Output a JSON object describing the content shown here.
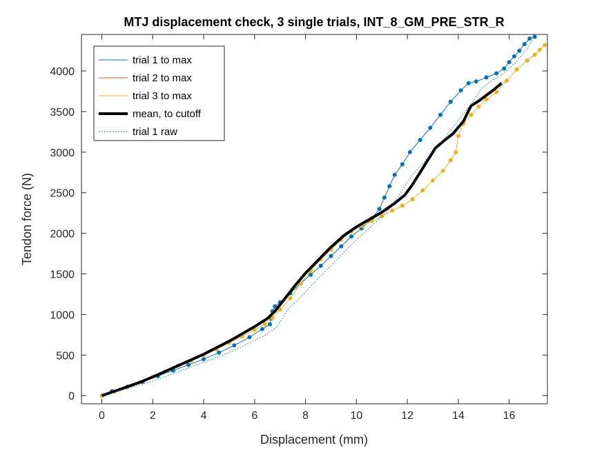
{
  "chart_data": {
    "type": "line",
    "title": "MTJ displacement check, 3 single trials, INT_8_GM_PRE_STR_R",
    "xlabel": "Displacement (mm)",
    "ylabel": "Tendon force (N)",
    "xlim": [
      -0.8,
      17.5
    ],
    "ylim": [
      -100,
      4450
    ],
    "xticks": [
      0,
      2,
      4,
      6,
      8,
      10,
      12,
      14,
      16
    ],
    "yticks": [
      0,
      500,
      1000,
      1500,
      2000,
      2500,
      3000,
      3500,
      4000
    ],
    "grid": false,
    "legend_position": "top-left",
    "colors": {
      "trial1": "#0072BD",
      "trial2": "#D95319",
      "trial3": "#EDB120",
      "mean": "#000000"
    },
    "series": [
      {
        "name": "trial 1 to max",
        "style": "solid-with-dots",
        "color": "#0072BD",
        "x": [
          0.0,
          0.4,
          1.0,
          1.6,
          2.2,
          2.8,
          3.4,
          4.0,
          4.6,
          5.2,
          5.8,
          6.3,
          6.6,
          6.65,
          6.7,
          6.8,
          7.0,
          7.4,
          7.8,
          8.2,
          8.6,
          9.0,
          9.4,
          9.8,
          10.2,
          10.6,
          10.9,
          11.1,
          11.3,
          11.5,
          11.8,
          12.1,
          12.5,
          12.9,
          13.3,
          13.7,
          14.1,
          14.4,
          14.7,
          15.1,
          15.5,
          15.8,
          16.0,
          16.2,
          16.4,
          16.6,
          16.8,
          17.0
        ],
        "y": [
          0,
          55,
          110,
          170,
          240,
          310,
          380,
          450,
          530,
          620,
          720,
          820,
          880,
          950,
          1040,
          1100,
          1150,
          1260,
          1380,
          1490,
          1600,
          1720,
          1840,
          1960,
          2060,
          2180,
          2300,
          2440,
          2580,
          2720,
          2850,
          3000,
          3150,
          3300,
          3460,
          3620,
          3760,
          3850,
          3870,
          3920,
          3970,
          4030,
          4110,
          4180,
          4250,
          4330,
          4400,
          4420
        ]
      },
      {
        "name": "trial 2 to max",
        "style": "solid",
        "color": "#D95319",
        "x": [],
        "y": []
      },
      {
        "name": "trial 3 to max",
        "style": "solid-with-dots",
        "color": "#EDB120",
        "x": [
          0.0,
          0.5,
          1.0,
          1.5,
          2.0,
          2.5,
          3.0,
          3.5,
          4.0,
          4.5,
          5.0,
          5.5,
          6.0,
          6.4,
          6.7,
          7.0,
          7.4,
          7.8,
          8.2,
          8.6,
          9.0,
          9.4,
          9.8,
          10.2,
          10.6,
          11.0,
          11.4,
          11.8,
          12.2,
          12.6,
          13.0,
          13.4,
          13.7,
          13.9,
          14.0,
          14.2,
          14.5,
          14.8,
          15.1,
          15.5,
          15.9,
          16.3,
          16.7,
          17.0,
          17.2,
          17.4
        ],
        "y": [
          0,
          50,
          100,
          165,
          230,
          300,
          370,
          430,
          500,
          570,
          650,
          730,
          810,
          880,
          960,
          1060,
          1200,
          1380,
          1540,
          1680,
          1800,
          1920,
          2020,
          2090,
          2150,
          2210,
          2280,
          2340,
          2420,
          2530,
          2650,
          2770,
          2900,
          3000,
          3200,
          3350,
          3460,
          3560,
          3650,
          3740,
          3880,
          4020,
          4130,
          4200,
          4260,
          4320
        ]
      },
      {
        "name": "mean, to cutoff",
        "style": "thick",
        "color": "#000000",
        "x": [
          0.0,
          0.5,
          1.0,
          1.5,
          2.0,
          2.5,
          3.0,
          3.5,
          4.0,
          4.5,
          5.0,
          5.5,
          6.0,
          6.5,
          6.8,
          7.2,
          7.6,
          8.0,
          8.5,
          9.0,
          9.5,
          10.0,
          10.5,
          11.0,
          11.5,
          11.9,
          12.2,
          12.5,
          12.8,
          13.1,
          13.4,
          13.8,
          14.2,
          14.5,
          14.8,
          15.1,
          15.4,
          15.7
        ],
        "y": [
          0,
          55,
          110,
          165,
          230,
          300,
          370,
          440,
          510,
          590,
          670,
          760,
          850,
          950,
          1040,
          1200,
          1360,
          1510,
          1670,
          1830,
          1970,
          2080,
          2170,
          2260,
          2370,
          2470,
          2600,
          2750,
          2900,
          3050,
          3130,
          3230,
          3380,
          3570,
          3630,
          3700,
          3770,
          3850
        ]
      },
      {
        "name": "trial 1 raw",
        "style": "dotted",
        "color": "#0072BD",
        "x": [
          0.0,
          0.5,
          1.0,
          1.6,
          2.2,
          2.8,
          3.4,
          4.0,
          4.6,
          5.2,
          5.8,
          6.4,
          6.9,
          7.1,
          7.3,
          7.7,
          8.1,
          8.5,
          8.9,
          9.3,
          9.7,
          10.1,
          10.5,
          10.9,
          11.3,
          11.6,
          11.9,
          12.2,
          12.6,
          13.0,
          13.4,
          13.8,
          14.2,
          14.6,
          14.9,
          15.3,
          15.7,
          16.1,
          16.4,
          16.7,
          16.9
        ],
        "y": [
          0,
          40,
          90,
          140,
          200,
          270,
          340,
          410,
          480,
          560,
          650,
          740,
          850,
          960,
          1060,
          1180,
          1310,
          1440,
          1570,
          1700,
          1830,
          1950,
          2060,
          2180,
          2300,
          2440,
          2580,
          2720,
          2860,
          3000,
          3150,
          3310,
          3470,
          3630,
          3780,
          3880,
          3950,
          4060,
          4160,
          4270,
          4380
        ]
      }
    ]
  }
}
